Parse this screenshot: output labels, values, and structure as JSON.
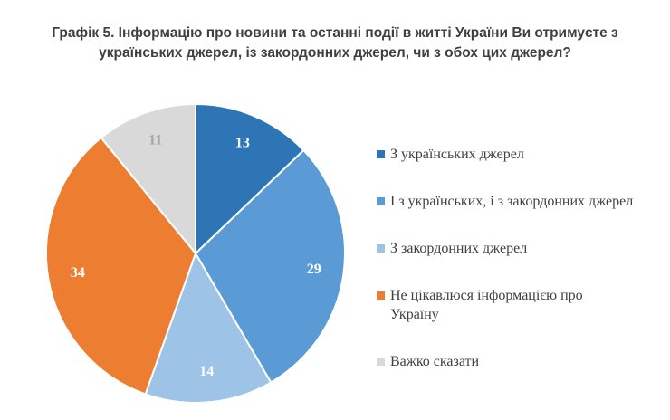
{
  "chart_data": {
    "type": "pie",
    "title": "Графік 5. Інформацію про новини та останні події в житті України Ви отримуєте з українських джерел, із закордонних джерел, чи з обох цих джерел?",
    "categories": [
      "З українських джерел",
      "І з українських, і з закордонних джерел",
      "З закордонних джерел",
      "Не цікавлюся інформацією про Україну",
      "Важко сказати"
    ],
    "values": [
      13,
      29,
      14,
      34,
      11
    ],
    "colors": [
      "#2e75b6",
      "#5b9bd5",
      "#9dc3e6",
      "#ed7d31",
      "#d9d9d9"
    ],
    "legend": "right"
  }
}
